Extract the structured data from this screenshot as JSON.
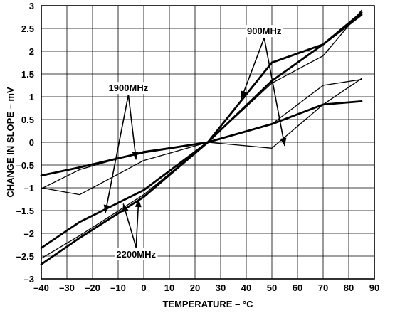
{
  "chart_data": {
    "type": "line",
    "title": "",
    "xlabel": "TEMPERATURE – °C",
    "ylabel": "CHANGE IN SLOPE – mV",
    "xlim": [
      -40,
      90
    ],
    "ylim": [
      -3,
      3
    ],
    "x_ticks": [
      -40,
      -30,
      -20,
      -10,
      0,
      10,
      20,
      30,
      40,
      50,
      60,
      70,
      80,
      90
    ],
    "y_ticks": [
      -3,
      -2.5,
      -2,
      -1.5,
      -1,
      -0.5,
      0,
      0.5,
      1,
      1.5,
      2,
      2.5,
      3
    ],
    "grid": true,
    "series": [
      {
        "x": [
          -40,
          -25,
          0,
          25,
          50,
          70,
          85
        ],
        "y": [
          -2.32,
          -1.75,
          -1.05,
          0,
          1.75,
          2.15,
          2.85
        ],
        "weight": "bold"
      },
      {
        "x": [
          -40,
          -25,
          0,
          25,
          50,
          70,
          85
        ],
        "y": [
          -2.55,
          -2.05,
          -1.15,
          0,
          1.3,
          1.9,
          2.9
        ],
        "weight": "thin"
      },
      {
        "x": [
          -40,
          -25,
          0,
          25,
          50,
          70,
          85
        ],
        "y": [
          -2.68,
          -2.1,
          -1.2,
          0,
          1.35,
          2.15,
          2.8
        ],
        "weight": "bold"
      },
      {
        "x": [
          -40,
          -25,
          0,
          25,
          50,
          70,
          85
        ],
        "y": [
          -1.02,
          -0.6,
          -0.2,
          0,
          0.4,
          1.25,
          1.38
        ],
        "weight": "thin"
      },
      {
        "x": [
          -40,
          -25,
          0,
          25,
          50,
          70,
          85
        ],
        "y": [
          -0.73,
          -0.55,
          -0.22,
          0,
          0.4,
          0.83,
          0.9
        ],
        "weight": "bold"
      },
      {
        "x": [
          -40,
          -25,
          0,
          25,
          50,
          70,
          85
        ],
        "y": [
          -1.0,
          -1.15,
          -0.4,
          0,
          -0.13,
          0.83,
          1.4
        ],
        "weight": "thin"
      }
    ],
    "annotations": [
      {
        "text": "900MHz",
        "x": 47,
        "y": 2.45,
        "arrows_to": [
          [
            38,
            0.95
          ],
          [
            55,
            -0.08
          ]
        ]
      },
      {
        "text": "1900MHz",
        "x": -6,
        "y": 1.2,
        "arrows_to": [
          [
            -15,
            -1.55
          ],
          [
            -3,
            -0.38
          ]
        ]
      },
      {
        "text": "2200MHz",
        "x": -3,
        "y": -2.45,
        "arrows_to": [
          [
            -8,
            -1.35
          ],
          [
            -2,
            -1.25
          ]
        ]
      }
    ]
  }
}
